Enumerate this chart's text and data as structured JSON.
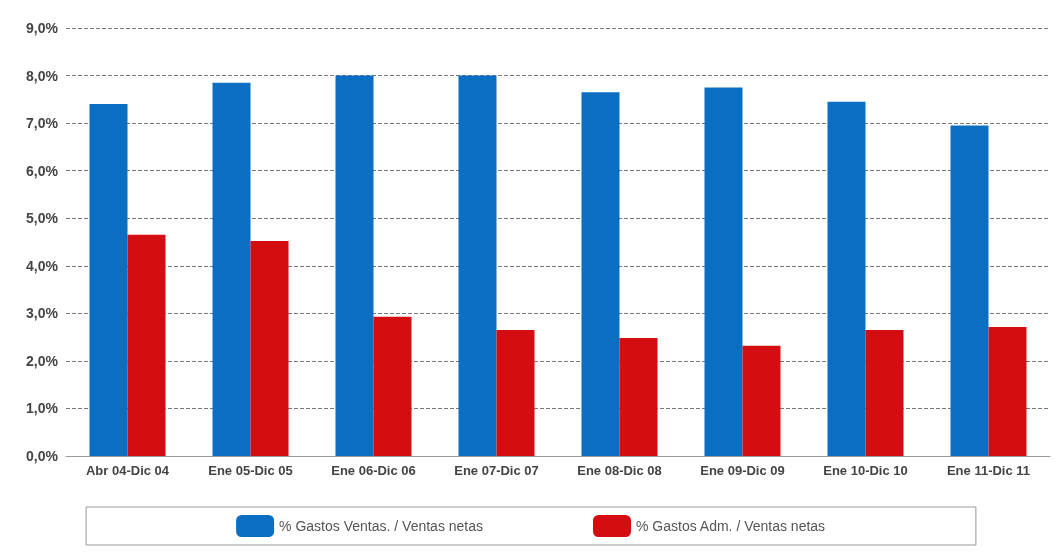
{
  "chart_data": {
    "type": "bar",
    "categories": [
      "Abr 04-Dic 04",
      "Ene 05-Dic 05",
      "Ene 06-Dic 06",
      "Ene 07-Dic 07",
      "Ene 08-Dic 08",
      "Ene 09-Dic 09",
      "Ene 10-Dic 10",
      "Ene 11-Dic 11"
    ],
    "series": [
      {
        "name": "% Gastos Ventas. / Ventas netas",
        "color": "#0a6fc2",
        "values": [
          7.4,
          7.85,
          8.0,
          8.0,
          7.65,
          7.75,
          7.45,
          6.95
        ]
      },
      {
        "name": "% Gastos Adm. / Ventas netas",
        "color": "#d40d12",
        "values": [
          4.65,
          4.52,
          2.93,
          2.65,
          2.48,
          2.32,
          2.65,
          2.71
        ]
      }
    ],
    "ylim": [
      0,
      9
    ],
    "yticks": [
      {
        "value": 0,
        "label": "0,0%"
      },
      {
        "value": 1,
        "label": "1,0%"
      },
      {
        "value": 2,
        "label": "2,0%"
      },
      {
        "value": 3,
        "label": "3,0%"
      },
      {
        "value": 4,
        "label": "4,0%"
      },
      {
        "value": 5,
        "label": "5,0%"
      },
      {
        "value": 6,
        "label": "6,0%"
      },
      {
        "value": 7,
        "label": "7,0%"
      },
      {
        "value": 8,
        "label": "8,0%"
      },
      {
        "value": 9,
        "label": "9,0%"
      }
    ],
    "grid": "y",
    "legend": "bottom"
  }
}
